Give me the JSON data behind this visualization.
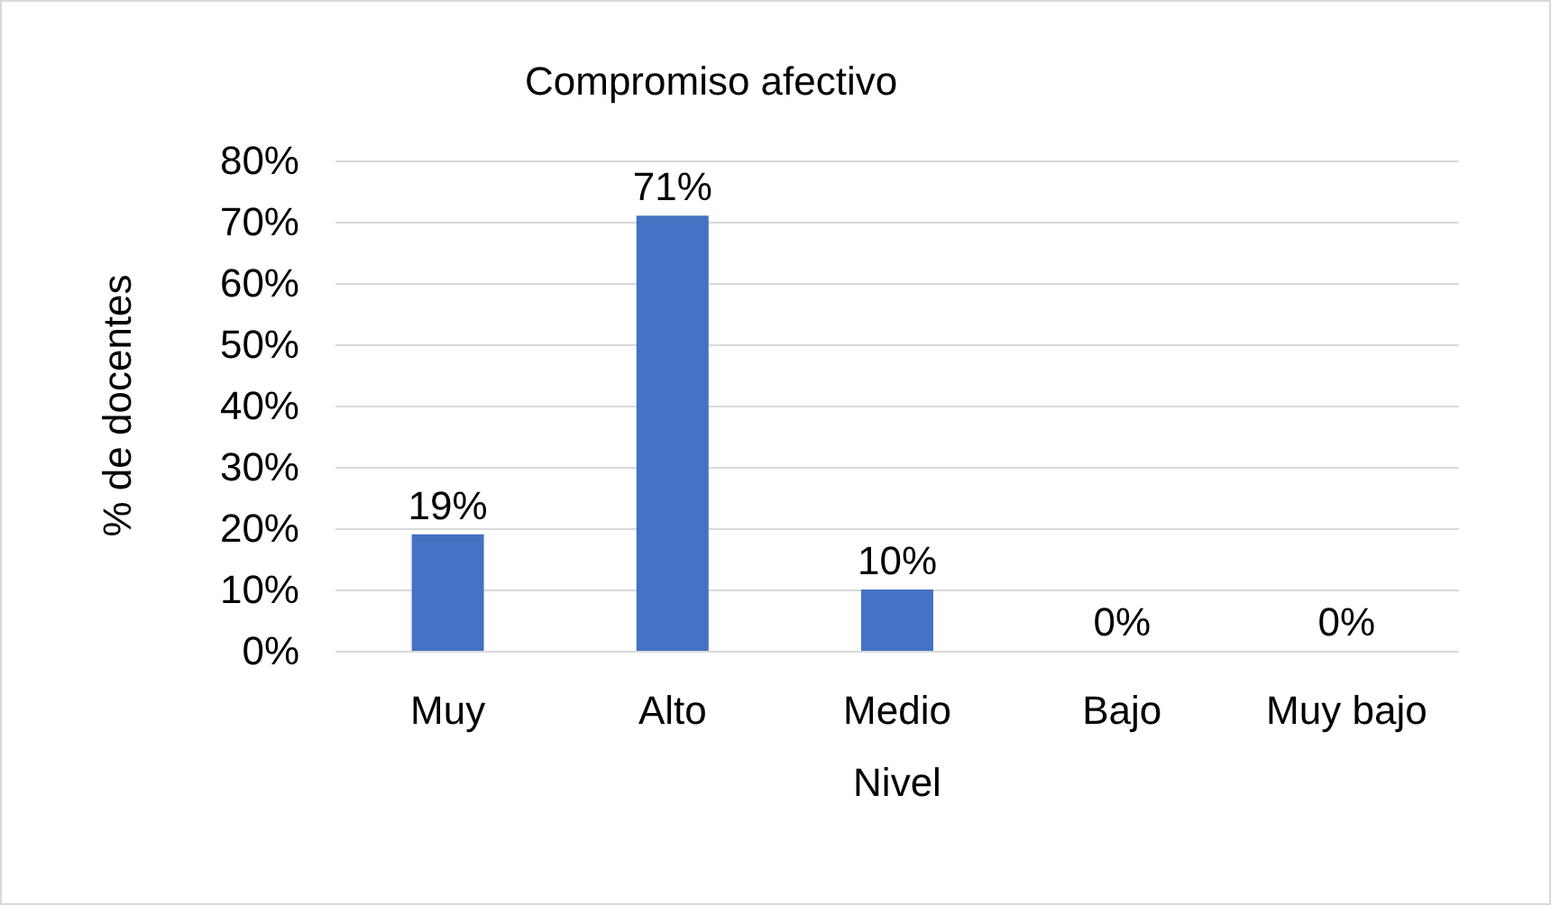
{
  "chart_data": {
    "type": "bar",
    "title": "Compromiso afectivo",
    "xlabel": "Nivel",
    "ylabel": "% de docentes",
    "categories": [
      "Muy",
      "Alto",
      "Medio",
      "Bajo",
      "Muy bajo"
    ],
    "values": [
      19,
      71,
      10,
      0,
      0
    ],
    "value_labels": [
      "19%",
      "71%",
      "10%",
      "0%",
      "0%"
    ],
    "color": "#4472c4",
    "ylim": [
      0,
      80
    ],
    "yticks": [
      {
        "value": 0,
        "label": "0%"
      },
      {
        "value": 10,
        "label": "10%"
      },
      {
        "value": 20,
        "label": "20%"
      },
      {
        "value": 30,
        "label": "30%"
      },
      {
        "value": 40,
        "label": "40%"
      },
      {
        "value": 50,
        "label": "50%"
      },
      {
        "value": 60,
        "label": "60%"
      },
      {
        "value": 70,
        "label": "70%"
      },
      {
        "value": 80,
        "label": "80%"
      }
    ],
    "grid": "y"
  }
}
